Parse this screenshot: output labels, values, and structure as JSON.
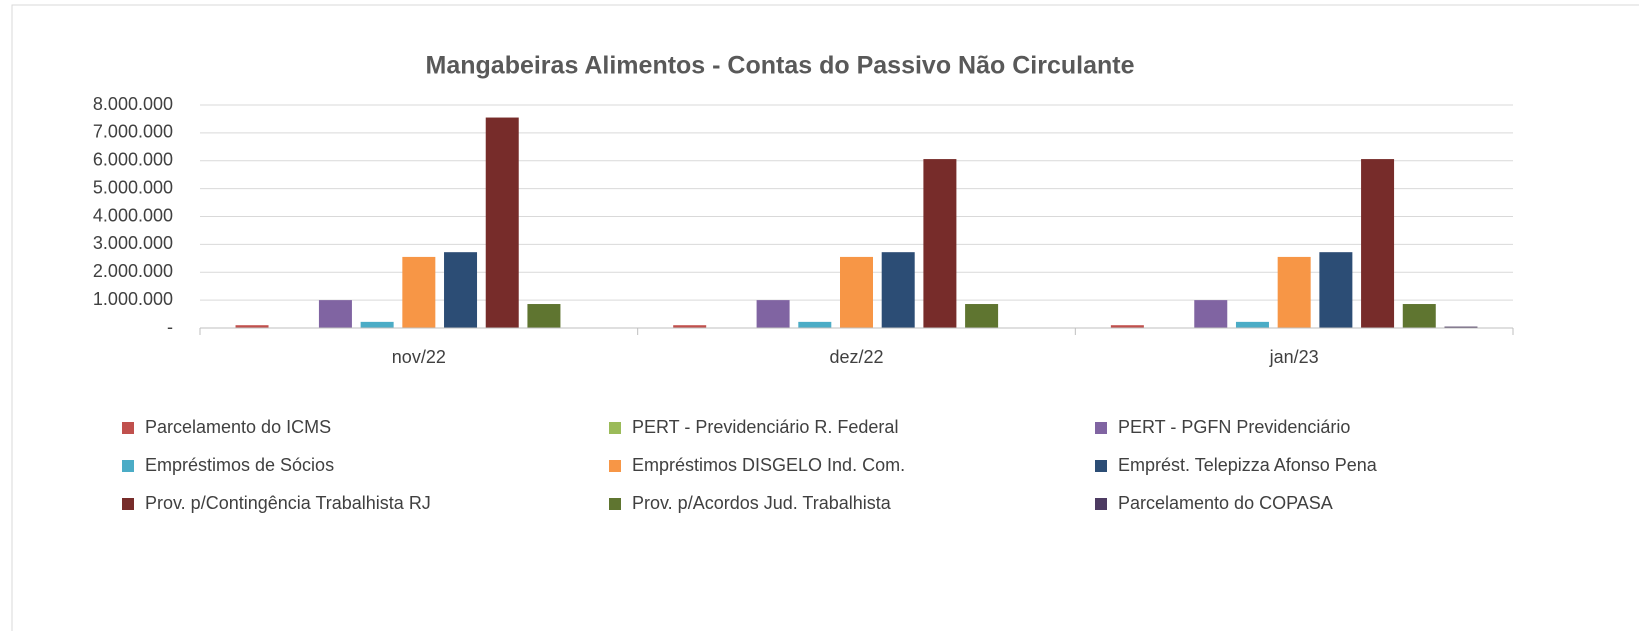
{
  "chart_data": {
    "type": "bar",
    "title": "Mangabeiras Alimentos - Contas do Passivo  Não Circulante",
    "categories": [
      "nov/22",
      "dez/22",
      "jan/23"
    ],
    "series": [
      {
        "name": "Parcelamento do ICMS",
        "color": "#c0504d",
        "values": [
          100000,
          100000,
          100000
        ]
      },
      {
        "name": "PERT - Previdenciário R. Federal",
        "color": "#9bbb59",
        "values": [
          0,
          0,
          0
        ]
      },
      {
        "name": "PERT - PGFN Previdenciário",
        "color": "#8064a2",
        "values": [
          1000000,
          1000000,
          1000000
        ]
      },
      {
        "name": "Empréstimos de Sócios",
        "color": "#4bacc6",
        "values": [
          220000,
          220000,
          220000
        ]
      },
      {
        "name": "Empréstimos DISGELO Ind. Com.",
        "color": "#f79646",
        "values": [
          2550000,
          2550000,
          2550000
        ]
      },
      {
        "name": "Emprést. Telepizza Afonso Pena",
        "color": "#2c4d75",
        "values": [
          2720000,
          2720000,
          2720000
        ]
      },
      {
        "name": "Prov. p/Contingência Trabalhista RJ",
        "color": "#772c2a",
        "values": [
          7550000,
          6060000,
          6060000
        ]
      },
      {
        "name": "Prov. p/Acordos Jud. Trabalhista",
        "color": "#5f7530",
        "values": [
          860000,
          860000,
          860000
        ]
      },
      {
        "name": "Parcelamento do COPASA",
        "color": "#4d3b62",
        "values": [
          0,
          0,
          50000
        ]
      }
    ],
    "ylim": [
      0,
      8000000
    ],
    "yticks": [
      {
        "value": 0,
        "label": "-"
      },
      {
        "value": 1000000,
        "label": "1.000.000"
      },
      {
        "value": 2000000,
        "label": "2.000.000"
      },
      {
        "value": 3000000,
        "label": "3.000.000"
      },
      {
        "value": 4000000,
        "label": "4.000.000"
      },
      {
        "value": 5000000,
        "label": "5.000.000"
      },
      {
        "value": 6000000,
        "label": "6.000.000"
      },
      {
        "value": 7000000,
        "label": "7.000.000"
      },
      {
        "value": 8000000,
        "label": "8.000.000"
      }
    ],
    "grid": true,
    "legend": "bottom"
  }
}
